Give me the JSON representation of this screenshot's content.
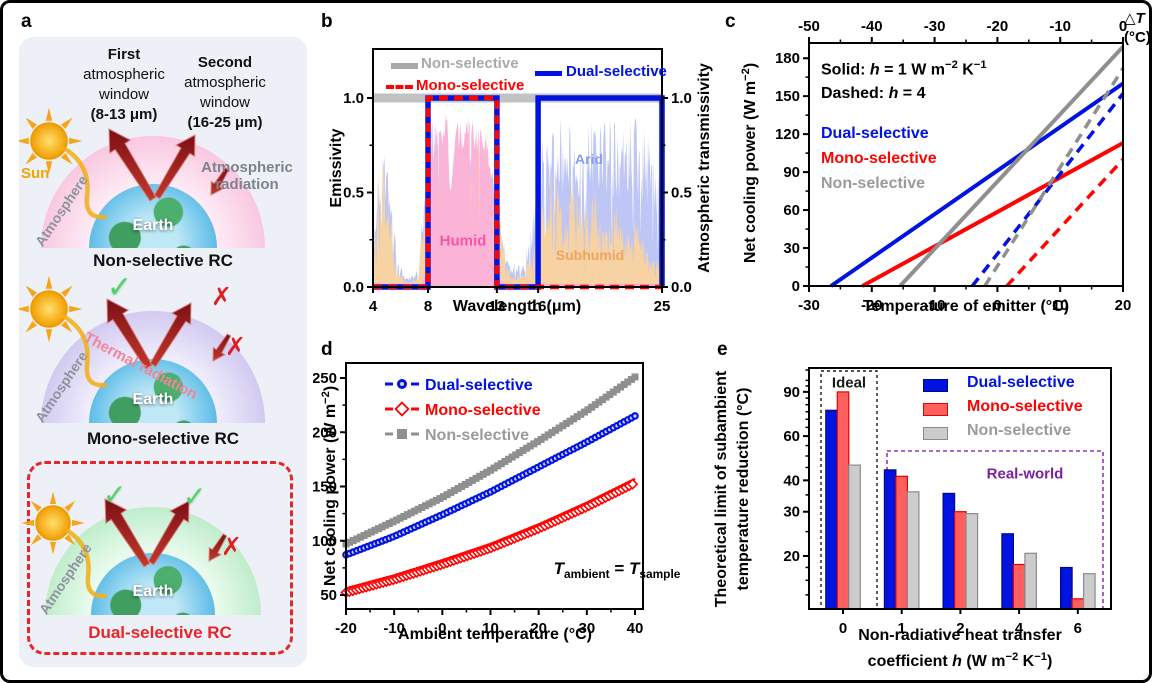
{
  "panel_a": {
    "label": "a",
    "first_window": {
      "l1": "First",
      "l2": "atmospheric",
      "l3": "window",
      "l4": "(8-13 μm)"
    },
    "second_window": {
      "l1": "Second",
      "l2": "atmospheric",
      "l3": "window",
      "l4": "(16-25 μm)"
    },
    "sun": "Sun",
    "atmosphere": "Atmosphere",
    "earth": "Earth",
    "atm_radiation_l1": "Atmospheric",
    "atm_radiation_l2": "radiation",
    "thermal_radiation": "Thermal radiation",
    "check": "✓",
    "cross": "✗",
    "titles": {
      "non": "Non-selective RC",
      "mono": "Mono-selective RC",
      "dual": "Dual-selective RC"
    },
    "title_colors": {
      "non": "#111111",
      "mono": "#111111",
      "dual": "#e8262a"
    }
  },
  "panel_b": {
    "label": "b",
    "ylabel": "Emissivity",
    "ylabel_right": "Atmospheric transmissivity",
    "xlabel": "Wavelength (μm)",
    "legend": [
      {
        "label": "Non-selective",
        "color": "#a9a9a9",
        "style": "solid-thick"
      },
      {
        "label": "Mono-selective",
        "color": "#ff0202",
        "style": "dashed"
      },
      {
        "label": "Dual-selective",
        "color": "#0013e0",
        "style": "solid"
      }
    ],
    "climates": {
      "humid": "Humid",
      "subhumid": "Subhumid",
      "arid": "Arid"
    },
    "climate_colors": {
      "humid": "#f556a8",
      "subhumid": "#f0a35c",
      "arid": "#8a9cf2"
    }
  },
  "panel_c": {
    "label": "c",
    "top_label": {
      "delta": "△",
      "t": "T",
      "units": "(°C)"
    },
    "ylabel": {
      "pre": "Net cooling power (W m",
      "sup": "−2",
      "post": ")"
    },
    "xlabel": "Temperature of emitter (°C)",
    "note_solid": {
      "a": "Solid: ",
      "h": "h",
      "b": " = 1 W m",
      "s1": "−2",
      "c": " K",
      "s2": "−1"
    },
    "note_dashed": {
      "a": "Dashed: ",
      "h": "h",
      "b": " = 4"
    },
    "legend": [
      {
        "label": "Dual-selective",
        "color": "#0013e0"
      },
      {
        "label": "Mono-selective",
        "color": "#ff0202"
      },
      {
        "label": "Non-selective",
        "color": "#9a9a9a"
      }
    ]
  },
  "panel_d": {
    "label": "d",
    "ylabel": {
      "pre": "Net cooling power (W m",
      "sup": "−2",
      "post": ")"
    },
    "xlabel": "Ambient temperature (°C)",
    "legend": [
      {
        "label": "Dual-selective",
        "color": "#0013e0"
      },
      {
        "label": "Mono-selective",
        "color": "#ff0202"
      },
      {
        "label": "Non-selective",
        "color": "#9a9a9a"
      }
    ],
    "annotation": {
      "T1": "T",
      "sub1": "ambient",
      "eq": " = ",
      "T2": "T",
      "sub2": "sample"
    }
  },
  "panel_e": {
    "label": "e",
    "ylabel_l1": "Theoretical limit of subambient",
    "ylabel_l2": "temperature reduction (°C)",
    "xlabel_l1": "Non-radiative heat transfer",
    "xlabel_l2": {
      "a": "coefficient ",
      "h": "h",
      "b": " (W m",
      "s1": "−2",
      "c": " K",
      "s2": "−1",
      "d": ")"
    },
    "ideal": "Ideal",
    "real_world": "Real-world",
    "ideal_color": "#1a1a1a",
    "real_world_color": "#7d1fa0",
    "legend": [
      {
        "label": "Dual-selective",
        "color": "#0013e0"
      },
      {
        "label": "Mono-selective",
        "color": "#ff0202"
      },
      {
        "label": "Non-selective",
        "color": "#9a9a9a"
      }
    ]
  },
  "chart_data": [
    {
      "panel": "b",
      "type": "line",
      "xlabel": "Wavelength (μm)",
      "ylabel_left": "Emissivity",
      "ylabel_right": "Atmospheric transmissivity",
      "xlim": [
        4,
        25
      ],
      "ylim": [
        0,
        1.26
      ],
      "xticks": [
        {
          "v": 4,
          "l": "4"
        },
        {
          "v": 8,
          "l": "8"
        },
        {
          "v": 13,
          "l": "13"
        },
        {
          "v": 16,
          "l": "16"
        },
        {
          "v": 25,
          "l": "25"
        }
      ],
      "yticks": [
        {
          "v": 0,
          "l": "0.0"
        },
        {
          "v": 0.5,
          "l": "0.5"
        },
        {
          "v": 1,
          "l": "1.0"
        }
      ],
      "emitters": [
        {
          "name": "Non-selective",
          "color": "#c2c2c2",
          "style": "solid-thick",
          "profile": [
            [
              4,
              1
            ],
            [
              25,
              1
            ]
          ]
        },
        {
          "name": "Mono-selective",
          "color": "#ff0202",
          "style": "dashed",
          "profile": [
            [
              4,
              0
            ],
            [
              8,
              0
            ],
            [
              8,
              1
            ],
            [
              13,
              1
            ],
            [
              13,
              0
            ],
            [
              25,
              0
            ]
          ]
        },
        {
          "name": "Dual-selective",
          "color": "#0013e0",
          "style": "solid",
          "profile": [
            [
              4,
              0
            ],
            [
              8,
              0
            ],
            [
              8,
              1
            ],
            [
              13,
              1
            ],
            [
              13,
              0
            ],
            [
              16,
              0
            ],
            [
              16,
              1
            ],
            [
              25,
              1
            ],
            [
              25,
              0
            ]
          ]
        }
      ],
      "atmosphere": [
        {
          "name": "Arid",
          "color": "#bdc6f5",
          "roughness": 0.5,
          "seed": 5,
          "envelope": [
            [
              4,
              0.05
            ],
            [
              4.3,
              0.75
            ],
            [
              4.8,
              0.85
            ],
            [
              5.3,
              0.6
            ],
            [
              5.8,
              0.15
            ],
            [
              6.5,
              0.05
            ],
            [
              7.3,
              0.1
            ],
            [
              7.7,
              0.55
            ],
            [
              8,
              0.88
            ],
            [
              8.5,
              0.92
            ],
            [
              9.4,
              0.9
            ],
            [
              9.6,
              0.55
            ],
            [
              9.9,
              0.88
            ],
            [
              11,
              0.92
            ],
            [
              12.4,
              0.88
            ],
            [
              12.9,
              0.6
            ],
            [
              13.2,
              0.3
            ],
            [
              14,
              0.12
            ],
            [
              15,
              0.15
            ],
            [
              15.7,
              0.45
            ],
            [
              16.1,
              0.8
            ],
            [
              17,
              0.93
            ],
            [
              18,
              0.9
            ],
            [
              19,
              0.94
            ],
            [
              20,
              0.9
            ],
            [
              21,
              0.92
            ],
            [
              22,
              0.88
            ],
            [
              23,
              0.9
            ],
            [
              24,
              0.86
            ],
            [
              24.8,
              0.7
            ],
            [
              25,
              0.3
            ]
          ]
        },
        {
          "name": "Subhumid",
          "color": "#f7d3a4",
          "roughness": 0.55,
          "seed": 23,
          "envelope": [
            [
              4,
              0.05
            ],
            [
              4.3,
              0.65
            ],
            [
              4.8,
              0.75
            ],
            [
              5.3,
              0.45
            ],
            [
              5.8,
              0.1
            ],
            [
              6.5,
              0.03
            ],
            [
              7.3,
              0.06
            ],
            [
              7.7,
              0.45
            ],
            [
              8,
              0.82
            ],
            [
              9,
              0.88
            ],
            [
              9.6,
              0.45
            ],
            [
              10,
              0.85
            ],
            [
              11,
              0.88
            ],
            [
              12.4,
              0.8
            ],
            [
              12.9,
              0.45
            ],
            [
              13.3,
              0.35
            ],
            [
              14,
              0.06
            ],
            [
              15,
              0.08
            ],
            [
              15.7,
              0.25
            ],
            [
              16.1,
              0.5
            ],
            [
              17,
              0.65
            ],
            [
              17.8,
              0.45
            ],
            [
              18.5,
              0.68
            ],
            [
              19.3,
              0.4
            ],
            [
              20,
              0.55
            ],
            [
              20.8,
              0.35
            ],
            [
              21.5,
              0.5
            ],
            [
              22.3,
              0.3
            ],
            [
              23,
              0.38
            ],
            [
              24,
              0.22
            ],
            [
              25,
              0.12
            ]
          ]
        },
        {
          "name": "Humid",
          "color": "#fbb3d8",
          "roughness": 0.18,
          "seed": 11,
          "envelope": [
            [
              4,
              0.02
            ],
            [
              7.6,
              0.02
            ],
            [
              7.9,
              0.1
            ],
            [
              8.2,
              0.75
            ],
            [
              8.6,
              0.9
            ],
            [
              9.4,
              0.92
            ],
            [
              9.65,
              0.5
            ],
            [
              9.95,
              0.88
            ],
            [
              11,
              0.9
            ],
            [
              12,
              0.85
            ],
            [
              12.5,
              0.75
            ],
            [
              12.9,
              0.35
            ],
            [
              13.2,
              0.05
            ],
            [
              13.6,
              0.02
            ],
            [
              25,
              0.02
            ]
          ]
        }
      ]
    },
    {
      "panel": "c",
      "type": "line",
      "xlabel": "Temperature of emitter (°C)",
      "xlabel_top": "△T (°C)",
      "ylabel": "Net cooling power (W m−2)",
      "xlim": [
        -30,
        20
      ],
      "ylim": [
        0,
        192
      ],
      "xticks": [
        {
          "v": -30,
          "l": "-30"
        },
        {
          "v": -20,
          "l": "-20"
        },
        {
          "v": -10,
          "l": "-10"
        },
        {
          "v": 0,
          "l": "0"
        },
        {
          "v": 10,
          "l": "10"
        },
        {
          "v": 20,
          "l": "20"
        }
      ],
      "top_ticks": [
        {
          "v": -30,
          "l": "-50"
        },
        {
          "v": -20,
          "l": "-40"
        },
        {
          "v": -10,
          "l": "-30"
        },
        {
          "v": 0,
          "l": "-20"
        },
        {
          "v": 10,
          "l": "-10"
        },
        {
          "v": 20,
          "l": "0"
        }
      ],
      "yticks": [
        {
          "v": 0,
          "l": "0"
        },
        {
          "v": 30,
          "l": "30"
        },
        {
          "v": 60,
          "l": "60"
        },
        {
          "v": 90,
          "l": "90"
        },
        {
          "v": 120,
          "l": "120"
        },
        {
          "v": 150,
          "l": "150"
        },
        {
          "v": 180,
          "l": "180"
        }
      ],
      "notes": {
        "solid": "Solid: h = 1 W m−2 K−1",
        "dashed": "Dashed: h = 4"
      },
      "series": [
        {
          "name": "Dual-selective",
          "h": 1,
          "color": "#0013e0",
          "dash": "solid",
          "points": [
            [
              -26.5,
              0
            ],
            [
              20,
              160
            ]
          ]
        },
        {
          "name": "Mono-selective",
          "h": 1,
          "color": "#ff0202",
          "dash": "solid",
          "points": [
            [
              -21.5,
              0
            ],
            [
              20,
              113
            ]
          ]
        },
        {
          "name": "Non-selective",
          "h": 1,
          "color": "#8f8f8f",
          "dash": "solid",
          "points": [
            [
              -15.5,
              0
            ],
            [
              20,
              189
            ]
          ]
        },
        {
          "name": "Dual-selective",
          "h": 4,
          "color": "#0013e0",
          "dash": "dashed",
          "points": [
            [
              -4,
              0
            ],
            [
              20,
              152
            ]
          ]
        },
        {
          "name": "Mono-selective",
          "h": 4,
          "color": "#ff0202",
          "dash": "dashed",
          "points": [
            [
              1.5,
              0
            ],
            [
              20,
              100
            ]
          ]
        },
        {
          "name": "Non-selective",
          "h": 4,
          "color": "#8f8f8f",
          "dash": "dashed",
          "points": [
            [
              -2,
              0
            ],
            [
              20,
              172
            ]
          ]
        }
      ]
    },
    {
      "panel": "d",
      "type": "scatter-line",
      "xlabel": "Ambient temperature (°C)",
      "ylabel": "Net cooling power (W m−2)",
      "xlim": [
        -20,
        41.7
      ],
      "ylim": [
        37,
        264
      ],
      "xticks": [
        {
          "v": -20,
          "l": "-20"
        },
        {
          "v": -10,
          "l": "-10"
        },
        {
          "v": 0,
          "l": "0"
        },
        {
          "v": 10,
          "l": "10"
        },
        {
          "v": 20,
          "l": "20"
        },
        {
          "v": 30,
          "l": "30"
        },
        {
          "v": 40,
          "l": "40"
        }
      ],
      "yticks": [
        {
          "v": 50,
          "l": "50"
        },
        {
          "v": 100,
          "l": "100"
        },
        {
          "v": 150,
          "l": "150"
        },
        {
          "v": 200,
          "l": "200"
        },
        {
          "v": 250,
          "l": "250"
        }
      ],
      "x": [
        -20,
        -10,
        0,
        10,
        20,
        30,
        40
      ],
      "series": [
        {
          "name": "Dual-selective",
          "marker": "circle",
          "color": "#0013e0",
          "values": [
            87,
            104,
            124,
            145,
            168,
            191,
            215
          ]
        },
        {
          "name": "Mono-selective",
          "marker": "diamond-open",
          "color": "#ff0202",
          "values": [
            56,
            68,
            82,
            97,
            115,
            135,
            157
          ]
        },
        {
          "name": "Non-selective",
          "marker": "square",
          "color": "#8f8f8f",
          "values": [
            97,
            118,
            140,
            165,
            192,
            220,
            251
          ]
        }
      ],
      "annotation": "Tambient = Tsample"
    },
    {
      "panel": "e",
      "type": "bar",
      "xlabel": "Non-radiative heat transfer coefficient h (W m−2 K−1)",
      "ylabel": "Theoretical limit of subambient temperature reduction (°C)",
      "categories": [
        "0",
        "1",
        "2",
        "4",
        "6"
      ],
      "yscale": "log",
      "ylim": [
        12.3,
        112
      ],
      "yticks": [
        {
          "v": 20,
          "l": "20"
        },
        {
          "v": 30,
          "l": "30"
        },
        {
          "v": 40,
          "l": "40"
        },
        {
          "v": 60,
          "l": "60"
        },
        {
          "v": 90,
          "l": "90"
        }
      ],
      "regions": [
        {
          "label": "Ideal",
          "categories": [
            "0"
          ]
        },
        {
          "label": "Real-world",
          "categories": [
            "1",
            "2",
            "4",
            "6"
          ]
        }
      ],
      "series": [
        {
          "name": "Dual-selective",
          "fill": "#0013e0",
          "edge": "#000a80",
          "values": [
            76,
            44,
            35.5,
            24.5,
            18
          ]
        },
        {
          "name": "Mono-selective",
          "fill": "#ff5f5f",
          "edge": "#e30000",
          "values": [
            90,
            41.5,
            30,
            18.5,
            13.5
          ]
        },
        {
          "name": "Non-selective",
          "fill": "#cccccc",
          "edge": "#8c8c8c",
          "values": [
            46,
            36,
            29.5,
            20.5,
            17
          ]
        }
      ]
    }
  ]
}
